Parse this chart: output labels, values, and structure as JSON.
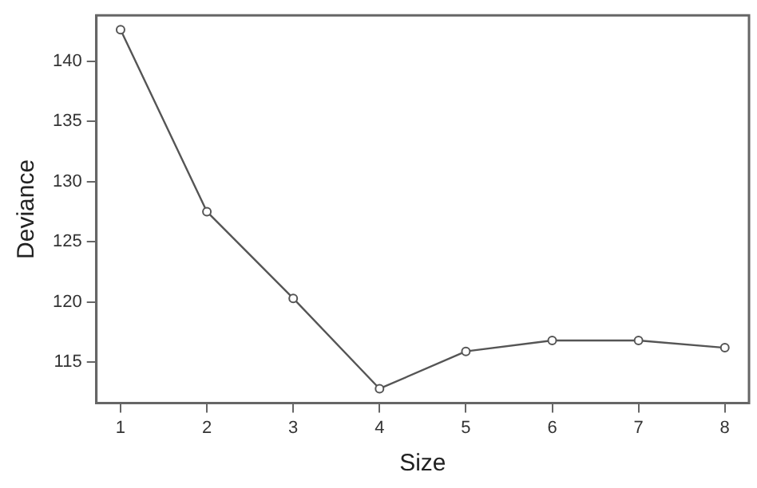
{
  "chart_data": {
    "type": "line",
    "xlabel": "Size",
    "ylabel": "Deviance",
    "x": [
      1,
      2,
      3,
      4,
      5,
      6,
      7,
      8
    ],
    "series": [
      {
        "color": "#555555",
        "values": [
          142.6,
          127.5,
          120.3,
          112.8,
          115.9,
          116.8,
          116.8,
          116.2
        ]
      }
    ],
    "xlim": [
      0.72,
      8.28
    ],
    "xticks": [
      1,
      2,
      3,
      4,
      5,
      6,
      7,
      8
    ],
    "ylim": [
      111.6,
      143.8
    ],
    "yticks": [
      115,
      120,
      125,
      130,
      135,
      140
    ],
    "grid": false,
    "legend": false,
    "marker": "circle",
    "line_style": "solid"
  }
}
